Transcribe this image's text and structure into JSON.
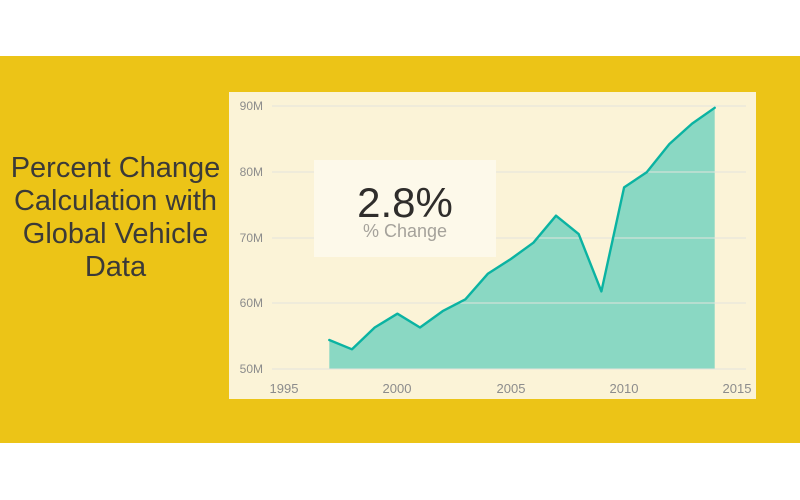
{
  "banner": {
    "title_lines": [
      "Percent Change",
      "Calculation with",
      "Global Vehicle",
      "Data"
    ]
  },
  "kpi_card": {
    "value": "2.8%",
    "label": "% Change"
  },
  "chart_data": {
    "type": "area",
    "title": "",
    "xlabel": "",
    "ylabel": "",
    "legend": "none",
    "grid": true,
    "x": [
      1997,
      1998,
      1999,
      2000,
      2001,
      2002,
      2003,
      2004,
      2005,
      2006,
      2007,
      2008,
      2009,
      2010,
      2011,
      2012,
      2013,
      2014
    ],
    "values": [
      54.4,
      53.0,
      56.3,
      58.4,
      56.3,
      58.8,
      60.6,
      64.5,
      66.7,
      69.2,
      73.3,
      70.5,
      61.8,
      77.6,
      79.9,
      84.2,
      87.3,
      89.7
    ],
    "values_unit": "M",
    "x_tick_labels": [
      "1995",
      "2000",
      "2005",
      "2010",
      "2015"
    ],
    "x_ticks": [
      1995,
      2000,
      2005,
      2010,
      2015
    ],
    "y_tick_labels": [
      "90M",
      "80M",
      "70M",
      "60M",
      "50M"
    ],
    "y_ticks": [
      90,
      80,
      70,
      60,
      50
    ],
    "x_range": [
      1995,
      2015
    ],
    "y_range": [
      50,
      90
    ]
  },
  "colors": {
    "page_background": "#FFFFFF",
    "background_band": "#ECC417",
    "panel_background": "#FBF3D7",
    "card_background": "#FDF9EA",
    "line": "#0BB3A2",
    "area_fill": "rgba(1,184,170,0.45)",
    "gridline": "#E3E3DD",
    "title_text": "#3B3A38",
    "kpi_value_text": "#2F2D2B",
    "kpi_label_text": "#A5A29B",
    "axis_text": "#8C8C8C"
  }
}
